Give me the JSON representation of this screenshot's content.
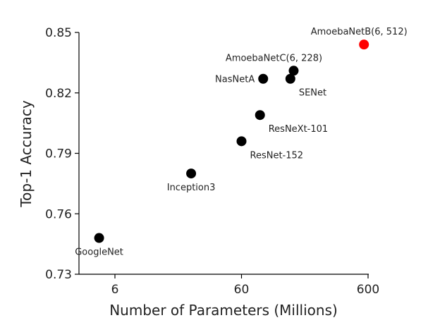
{
  "chart_data": {
    "type": "scatter",
    "xlabel": "Number of Parameters (Millions)",
    "ylabel": "Top-1 Accuracy",
    "xscale": "log",
    "xlim": [
      2.5,
      650
    ],
    "ylim": [
      0.73,
      0.85
    ],
    "xticks": [
      6,
      60,
      600
    ],
    "yticks": [
      0.73,
      0.76,
      0.79,
      0.82,
      0.85
    ],
    "grid": false,
    "points": [
      {
        "label": "GoogleNet",
        "x": 4.5,
        "y": 0.748,
        "color": "#000000",
        "label_pos": "below"
      },
      {
        "label": "Inception3",
        "x": 24,
        "y": 0.78,
        "color": "#000000",
        "label_pos": "below"
      },
      {
        "label": "ResNet-152",
        "x": 60,
        "y": 0.796,
        "color": "#000000",
        "label_pos": "below-right"
      },
      {
        "label": "ResNeXt-101",
        "x": 84,
        "y": 0.809,
        "color": "#000000",
        "label_pos": "below-right"
      },
      {
        "label": "NasNetA",
        "x": 89,
        "y": 0.827,
        "color": "#000000",
        "label_pos": "left"
      },
      {
        "label": "AmoebaNetC(6, 228)",
        "x": 155,
        "y": 0.831,
        "color": "#000000",
        "label_pos": "above-left"
      },
      {
        "label": "SENet",
        "x": 146,
        "y": 0.827,
        "color": "#000000",
        "label_pos": "below-right"
      },
      {
        "label": "AmoebaNetB(6, 512)",
        "x": 557,
        "y": 0.844,
        "color": "#ff0000",
        "label_pos": "above"
      }
    ]
  }
}
